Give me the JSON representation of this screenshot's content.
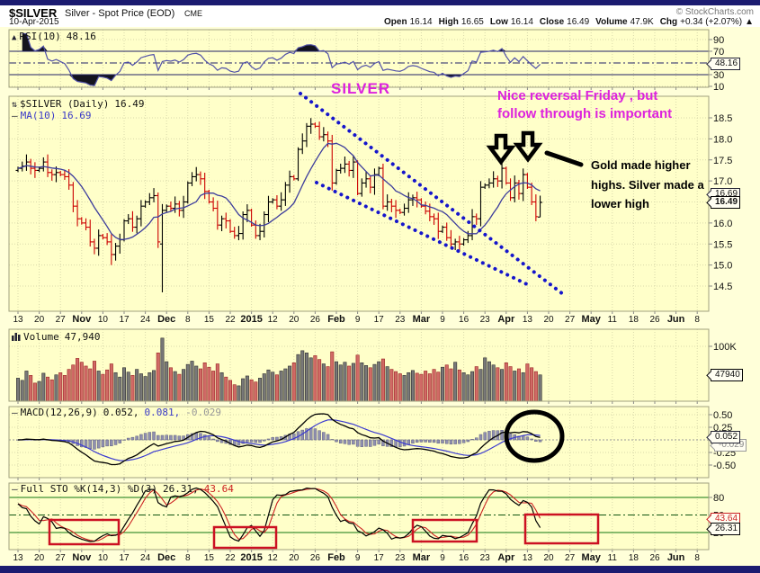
{
  "header": {
    "symbol": "$SILVER",
    "name": "Silver - Spot Price (EOD)",
    "exchange": "CME",
    "credit": "© StockCharts.com",
    "date": "10-Apr-2015",
    "quote": {
      "open_label": "Open",
      "open": "16.14",
      "high_label": "High",
      "high": "16.65",
      "low_label": "Low",
      "low": "16.14",
      "close_label": "Close",
      "close": "16.49",
      "volume_label": "Volume",
      "volume": "47.9K",
      "chg_label": "Chg",
      "chg": "+0.34 (+2.07%)",
      "chg_arrow": "▲"
    }
  },
  "panels": {
    "rsi": {
      "label": "RSI(10)",
      "value": "48.16",
      "yticks": [
        90,
        70,
        30,
        10
      ]
    },
    "price": {
      "label": "$SILVER (Daily)",
      "value": "16.49",
      "ma_label": "MA(10)",
      "ma_value": "16.69",
      "yticks": [
        18.5,
        18.0,
        17.5,
        17.0,
        16.0,
        15.5,
        15.0,
        14.5
      ],
      "tag_ma": "16.69",
      "tag_close": "16.49"
    },
    "volume": {
      "label": "Volume",
      "value": "47,940",
      "ytick": "100K",
      "tag": "47940"
    },
    "macd": {
      "label": "MACD(12,26,9)",
      "v1": "0.052,",
      "v2": "0.081,",
      "v3": "-0.029",
      "yticks": [
        0.5,
        0.25,
        -0.25,
        -0.5
      ],
      "tag_main": "0.052",
      "tag_hist": "-0.029"
    },
    "sto": {
      "label": "Full STO %K(14,3) %D(3)",
      "k": "26.31,",
      "d": "43.64",
      "yticks": [
        80,
        50,
        20
      ],
      "tag_d": "43.64",
      "tag_k": "26.31"
    }
  },
  "xaxis": {
    "labels": [
      "13",
      "20",
      "27",
      "Nov",
      "10",
      "17",
      "24",
      "Dec",
      "8",
      "15",
      "22",
      "2015",
      "12",
      "20",
      "26",
      "Feb",
      "9",
      "17",
      "23",
      "Mar",
      "9",
      "16",
      "23",
      "Apr",
      "13",
      "20",
      "27",
      "May",
      "11",
      "18",
      "26",
      "Jun",
      "8"
    ]
  },
  "annotations": {
    "silver_title": "SILVER",
    "reversal_line1": "Nice reversal Friday , but",
    "reversal_line2": "follow through is important",
    "gold_line1": "Gold made higher",
    "gold_line2": "highs. Silver made a",
    "gold_line3": "lower high",
    "shapes": {
      "wedge_lines": [
        [
          334,
          104,
          626,
          327
        ],
        [
          352,
          203,
          590,
          318
        ]
      ],
      "arrows": [
        [
          545,
          151
        ],
        [
          575,
          148
        ]
      ],
      "pointer_line": [
        608,
        170,
        646,
        183
      ],
      "macd_circle": [
        594,
        485,
        31,
        27
      ],
      "sto_boxes": [
        [
          55,
          578,
          77,
          27
        ],
        [
          238,
          586,
          69,
          23
        ],
        [
          459,
          578,
          71,
          24
        ],
        [
          584,
          572,
          81,
          32
        ]
      ]
    }
  },
  "colors": {
    "magenta": "#dd22dd",
    "wedge_blue": "#1515cc",
    "bar_up": "#000000",
    "bar_down": "#cc0000",
    "vol_up_fill": "#787878",
    "vol_up_edge": "#303030",
    "vol_down_fill": "#d06a66",
    "vol_down_edge": "#992222",
    "ma_line": "#3c3c9c",
    "rsi_line": "#5050a8",
    "macd_line": "#000000",
    "macd_signal": "#3a3ad0",
    "hist_fill": "#9090b0",
    "hist_edge": "#606080",
    "sto_k": "#000000",
    "sto_d": "#cc2222",
    "sto_levels": "#117711",
    "annotation_red": "#cc1122",
    "plot_bg": "#ffffc9",
    "margin_bg": "#ffffd9",
    "grid": "#d9d9ab",
    "panel_border": "#a0a080"
  },
  "chart_data": {
    "type": "ohlc+indicators",
    "symbol": "$SILVER",
    "timeframe": "daily",
    "date_range": "13-Oct-2014 to 10-Apr-2015 (axis extends to 8-Jun-2015)",
    "last_bar": {
      "date": "10-Apr-2015",
      "open": 16.14,
      "high": 16.65,
      "low": 16.14,
      "close": 16.49,
      "volume": 47940
    },
    "indicators": {
      "rsi": 48.16,
      "ma10": 16.69,
      "close": 16.49,
      "volume_k": 47.94,
      "macd": 0.052,
      "macd_signal": 0.081,
      "macd_hist": -0.029,
      "sto_k": 26.31,
      "sto_d": 43.64
    },
    "closes": [
      17.3,
      17.35,
      17.45,
      17.3,
      17.25,
      17.3,
      17.45,
      17.2,
      17.15,
      17.2,
      17.15,
      17.1,
      16.9,
      16.4,
      16.1,
      16.0,
      15.9,
      15.55,
      15.4,
      15.7,
      15.65,
      15.55,
      15.25,
      15.45,
      15.6,
      16.05,
      16.1,
      15.9,
      16.1,
      16.4,
      16.5,
      16.6,
      16.65,
      15.55,
      16.3,
      16.4,
      16.35,
      16.45,
      16.3,
      16.5,
      16.95,
      17.1,
      17.15,
      17.05,
      16.75,
      16.5,
      16.35,
      15.95,
      16.1,
      16.05,
      15.8,
      15.7,
      15.75,
      16.2,
      16.3,
      15.95,
      15.7,
      15.8,
      16.2,
      16.5,
      16.55,
      16.4,
      16.55,
      16.9,
      17.1,
      17.05,
      17.75,
      17.95,
      18.3,
      18.35,
      18.3,
      18.05,
      18.1,
      17.95,
      16.95,
      17.25,
      17.3,
      17.4,
      17.25,
      17.45,
      16.7,
      16.95,
      17.05,
      16.85,
      17.15,
      17.3,
      16.4,
      16.5,
      16.4,
      16.3,
      16.25,
      16.35,
      16.55,
      16.6,
      16.55,
      16.4,
      16.28,
      16.15,
      16.1,
      15.8,
      15.9,
      15.65,
      15.5,
      15.55,
      15.5,
      15.6,
      15.7,
      16.15,
      16.1,
      16.85,
      16.9,
      16.95,
      17.05,
      17.0,
      17.3,
      16.95,
      16.6,
      16.95,
      16.7,
      17.15,
      16.85,
      16.5,
      16.15,
      16.49
    ],
    "volumes_k": [
      42,
      38,
      55,
      47,
      33,
      36,
      51,
      44,
      39,
      48,
      52,
      47,
      58,
      66,
      78,
      71,
      64,
      59,
      73,
      55,
      49,
      57,
      68,
      52,
      44,
      61,
      53,
      47,
      58,
      50,
      45,
      52,
      56,
      88,
      115,
      72,
      61,
      54,
      49,
      58,
      67,
      73,
      64,
      59,
      70,
      62,
      55,
      68,
      52,
      44,
      38,
      30,
      28,
      41,
      46,
      39,
      35,
      42,
      50,
      57,
      53,
      48,
      55,
      59,
      64,
      70,
      85,
      92,
      88,
      79,
      83,
      76,
      68,
      63,
      90,
      72,
      66,
      71,
      64,
      69,
      84,
      70,
      65,
      61,
      67,
      72,
      77,
      63,
      58,
      54,
      50,
      47,
      52,
      56,
      51,
      49,
      55,
      50,
      58,
      53,
      62,
      66,
      59,
      71,
      57,
      52,
      48,
      54,
      63,
      58,
      79,
      72,
      66,
      61,
      58,
      70,
      63,
      55,
      59,
      52,
      68,
      61,
      54,
      47.94
    ],
    "special_bars": {
      "22": {
        "low": 15.0
      },
      "34": {
        "open": 15.5,
        "high": 16.45,
        "low": 14.35,
        "close": 16.3
      },
      "66": {
        "high": 17.8,
        "low": 17.0
      },
      "123": {
        "open": 16.14,
        "high": 16.65,
        "low": 16.14,
        "close": 16.49
      }
    }
  }
}
